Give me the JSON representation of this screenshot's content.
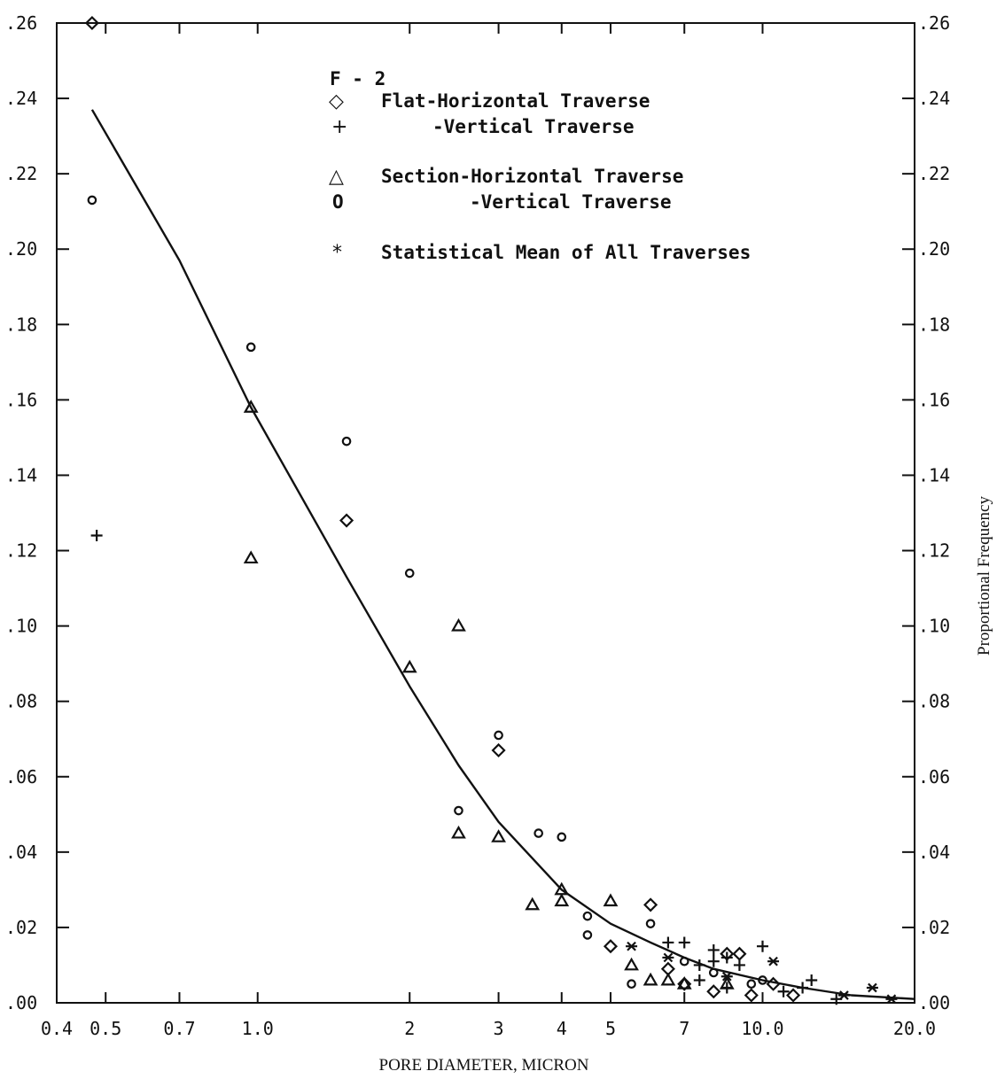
{
  "chart_data": {
    "type": "scatter",
    "title": "F - 2",
    "xlabel": "PORE DIAMETER, MICRON",
    "ylabel": "Proportional Frequency",
    "xscale": "log",
    "xlim": [
      0.4,
      20.0
    ],
    "ylim": [
      0.0,
      0.26
    ],
    "grid": false,
    "legend_position": "top-center",
    "x_ticks": [
      {
        "value": 0.4,
        "label": "0.4"
      },
      {
        "value": 0.5,
        "label": "0.5"
      },
      {
        "value": 0.7,
        "label": "0.7"
      },
      {
        "value": 1.0,
        "label": "1.0"
      },
      {
        "value": 2,
        "label": "2"
      },
      {
        "value": 3,
        "label": "3"
      },
      {
        "value": 4,
        "label": "4"
      },
      {
        "value": 5,
        "label": "5"
      },
      {
        "value": 7,
        "label": "7"
      },
      {
        "value": 10.0,
        "label": "10.0"
      },
      {
        "value": 20.0,
        "label": "20.0"
      }
    ],
    "y_ticks_left": [
      {
        "value": 0.0,
        "label": ".00"
      },
      {
        "value": 0.02,
        "label": ".02"
      },
      {
        "value": 0.04,
        "label": ".04"
      },
      {
        "value": 0.06,
        "label": ".06"
      },
      {
        "value": 0.08,
        "label": ".08"
      },
      {
        "value": 0.1,
        "label": ".10"
      },
      {
        "value": 0.12,
        "label": ".12"
      },
      {
        "value": 0.14,
        "label": ".14"
      },
      {
        "value": 0.16,
        "label": ".16"
      },
      {
        "value": 0.18,
        "label": ".18"
      },
      {
        "value": 0.2,
        "label": ".20"
      },
      {
        "value": 0.22,
        "label": ".22"
      },
      {
        "value": 0.24,
        "label": ".24"
      },
      {
        "value": 0.26,
        "label": ".26"
      }
    ],
    "y_ticks_right": [
      {
        "value": 0.0,
        "label": ".00"
      },
      {
        "value": 0.02,
        "label": ".02"
      },
      {
        "value": 0.04,
        "label": ".04"
      },
      {
        "value": 0.06,
        "label": ".06"
      },
      {
        "value": 0.08,
        "label": ".08"
      },
      {
        "value": 0.1,
        "label": ".10"
      },
      {
        "value": 0.12,
        "label": ".12"
      },
      {
        "value": 0.14,
        "label": ".14"
      },
      {
        "value": 0.16,
        "label": ".16"
      },
      {
        "value": 0.18,
        "label": ".18"
      },
      {
        "value": 0.2,
        "label": ".20"
      },
      {
        "value": 0.22,
        "label": ".22"
      },
      {
        "value": 0.24,
        "label": ".24"
      },
      {
        "value": 0.26,
        "label": ".26"
      }
    ],
    "legend": [
      {
        "marker": "diamond",
        "symbol": "◇",
        "label": "Flat-Horizontal Traverse"
      },
      {
        "marker": "plus",
        "symbol": "+",
        "label": "-Vertical Traverse"
      },
      {
        "marker": "triangle",
        "symbol": "△",
        "label": "Section-Horizontal Traverse"
      },
      {
        "marker": "circle",
        "symbol": "O",
        "label": "-Vertical Traverse"
      },
      {
        "marker": "star",
        "symbol": "*",
        "label": "Statistical Mean of All Traverses"
      }
    ],
    "series": [
      {
        "name": "Flat-Horizontal Traverse",
        "marker": "diamond",
        "points": [
          [
            0.47,
            0.26
          ],
          [
            1.5,
            0.128
          ],
          [
            3.0,
            0.067
          ],
          [
            5.0,
            0.015
          ],
          [
            6.0,
            0.026
          ],
          [
            6.5,
            0.009
          ],
          [
            7.0,
            0.005
          ],
          [
            8.0,
            0.003
          ],
          [
            8.5,
            0.013
          ],
          [
            9.0,
            0.013
          ],
          [
            9.5,
            0.002
          ],
          [
            10.5,
            0.005
          ],
          [
            11.5,
            0.002
          ]
        ]
      },
      {
        "name": "-Vertical Traverse",
        "marker": "plus",
        "points": [
          [
            0.48,
            0.124
          ],
          [
            6.5,
            0.016
          ],
          [
            7.0,
            0.016
          ],
          [
            7.5,
            0.01
          ],
          [
            8.0,
            0.014
          ],
          [
            8.0,
            0.011
          ],
          [
            8.5,
            0.012
          ],
          [
            9.0,
            0.01
          ],
          [
            7.5,
            0.006
          ],
          [
            8.5,
            0.004
          ],
          [
            10.0,
            0.015
          ],
          [
            11.0,
            0.003
          ],
          [
            12.0,
            0.004
          ],
          [
            12.5,
            0.006
          ],
          [
            14.0,
            0.001
          ]
        ]
      },
      {
        "name": "Section-Horizontal Traverse",
        "marker": "triangle",
        "points": [
          [
            0.97,
            0.158
          ],
          [
            0.97,
            0.118
          ],
          [
            2.0,
            0.089
          ],
          [
            2.5,
            0.1
          ],
          [
            2.5,
            0.045
          ],
          [
            3.0,
            0.044
          ],
          [
            3.5,
            0.026
          ],
          [
            4.0,
            0.03
          ],
          [
            4.0,
            0.027
          ],
          [
            5.0,
            0.027
          ],
          [
            5.5,
            0.01
          ],
          [
            6.0,
            0.006
          ],
          [
            6.5,
            0.006
          ],
          [
            7.0,
            0.005
          ],
          [
            8.5,
            0.005
          ]
        ]
      },
      {
        "name": "-Vertical Traverse",
        "marker": "circle",
        "points": [
          [
            0.47,
            0.213
          ],
          [
            0.97,
            0.174
          ],
          [
            1.5,
            0.149
          ],
          [
            2.0,
            0.114
          ],
          [
            2.5,
            0.051
          ],
          [
            3.0,
            0.071
          ],
          [
            3.6,
            0.045
          ],
          [
            4.0,
            0.044
          ],
          [
            4.5,
            0.018
          ],
          [
            4.5,
            0.023
          ],
          [
            5.5,
            0.005
          ],
          [
            6.0,
            0.021
          ],
          [
            7.0,
            0.011
          ],
          [
            8.0,
            0.008
          ],
          [
            9.5,
            0.005
          ],
          [
            10.0,
            0.006
          ]
        ]
      },
      {
        "name": "Statistical Mean of All Traverses",
        "marker": "star",
        "points": [
          [
            5.5,
            0.015
          ],
          [
            6.5,
            0.012
          ],
          [
            8.5,
            0.007
          ],
          [
            10.5,
            0.011
          ],
          [
            14.5,
            0.002
          ],
          [
            16.5,
            0.004
          ],
          [
            18.0,
            0.001
          ]
        ]
      }
    ],
    "fit_curve": {
      "points": [
        [
          0.47,
          0.237
        ],
        [
          0.7,
          0.197
        ],
        [
          0.97,
          0.158
        ],
        [
          1.5,
          0.113
        ],
        [
          2.0,
          0.084
        ],
        [
          2.5,
          0.063
        ],
        [
          3.0,
          0.048
        ],
        [
          4.0,
          0.03
        ],
        [
          5.0,
          0.021
        ],
        [
          6.0,
          0.016
        ],
        [
          7.0,
          0.012
        ],
        [
          8.0,
          0.009
        ],
        [
          10.0,
          0.006
        ],
        [
          12.0,
          0.004
        ],
        [
          15.0,
          0.002
        ],
        [
          20.0,
          0.001
        ]
      ]
    }
  }
}
